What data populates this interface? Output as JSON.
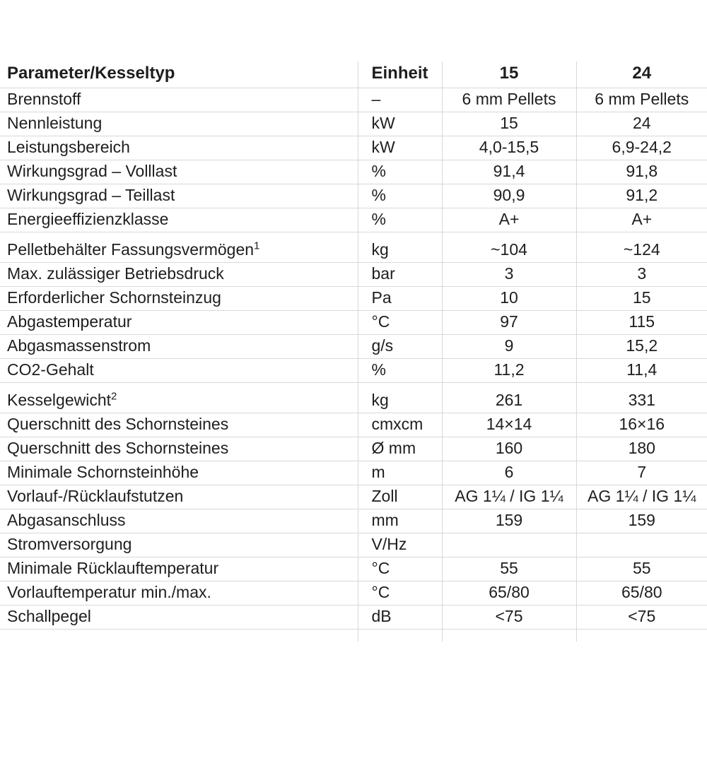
{
  "table": {
    "header": {
      "param": "Parameter/Kesseltyp",
      "unit": "Einheit",
      "col15": "15",
      "col24": "24"
    },
    "rows": [
      {
        "param": "Brennstoff",
        "sup": "",
        "unit": "–",
        "v15": "6 mm Pellets",
        "v24": "6 mm Pellets"
      },
      {
        "param": "Nennleistung",
        "sup": "",
        "unit": "kW",
        "v15": "15",
        "v24": "24"
      },
      {
        "param": "Leistungsbereich",
        "sup": "",
        "unit": "kW",
        "v15": "4,0-15,5",
        "v24": "6,9-24,2"
      },
      {
        "param": "Wirkungsgrad – Volllast",
        "sup": "",
        "unit": "%",
        "v15": "91,4",
        "v24": "91,8"
      },
      {
        "param": "Wirkungsgrad – Teillast",
        "sup": "",
        "unit": "%",
        "v15": "90,9",
        "v24": "91,2"
      },
      {
        "param": "Energieeffizienzklasse",
        "sup": "",
        "unit": "%",
        "v15": "A+",
        "v24": "A+"
      },
      {
        "param": "Pelletbehälter Fassungsvermögen",
        "sup": "1",
        "unit": "kg",
        "v15": "~104",
        "v24": "~124"
      },
      {
        "param": "Max. zulässiger Betriebsdruck",
        "sup": "",
        "unit": "bar",
        "v15": "3",
        "v24": "3"
      },
      {
        "param": "Erforderlicher Schornsteinzug",
        "sup": "",
        "unit": "Pa",
        "v15": "10",
        "v24": "15"
      },
      {
        "param": "Abgastemperatur",
        "sup": "",
        "unit": "°C",
        "v15": "97",
        "v24": "115"
      },
      {
        "param": "Abgasmassenstrom",
        "sup": "",
        "unit": "g/s",
        "v15": "9",
        "v24": "15,2"
      },
      {
        "param": "CO2-Gehalt",
        "sup": "",
        "unit": "%",
        "v15": "11,2",
        "v24": "11,4"
      },
      {
        "param": "Kesselgewicht",
        "sup": "2",
        "unit": "kg",
        "v15": "261",
        "v24": "331"
      },
      {
        "param": "Querschnitt des Schornsteines",
        "sup": "",
        "unit": "cmxcm",
        "v15": "14×14",
        "v24": "16×16"
      },
      {
        "param": "Querschnitt des Schornsteines",
        "sup": "",
        "unit": "Ø mm",
        "v15": "160",
        "v24": "180"
      },
      {
        "param": "Minimale Schornsteinhöhe",
        "sup": "",
        "unit": "m",
        "v15": "6",
        "v24": "7"
      },
      {
        "param": "Vorlauf-/Rücklaufstutzen",
        "sup": "",
        "unit": "Zoll",
        "v15": "AG 1¼ / IG 1¼",
        "v24": "AG 1¼ / IG 1¼"
      },
      {
        "param": "Abgasanschluss",
        "sup": "",
        "unit": "mm",
        "v15": "159",
        "v24": "159"
      },
      {
        "param": "Stromversorgung",
        "sup": "",
        "unit": "V/Hz",
        "v15": "",
        "v24": ""
      },
      {
        "param": "Minimale Rücklauftemperatur",
        "sup": "",
        "unit": "°C",
        "v15": "55",
        "v24": "55"
      },
      {
        "param": "Vorlauftemperatur min./max.",
        "sup": "",
        "unit": "°C",
        "v15": "65/80",
        "v24": "65/80"
      },
      {
        "param": "Schallpegel",
        "sup": "",
        "unit": "dB",
        "v15": "<75",
        "v24": "<75"
      }
    ]
  },
  "colors": {
    "border": "#d8d8d8",
    "text": "#1e1e1e",
    "background": "#ffffff"
  }
}
